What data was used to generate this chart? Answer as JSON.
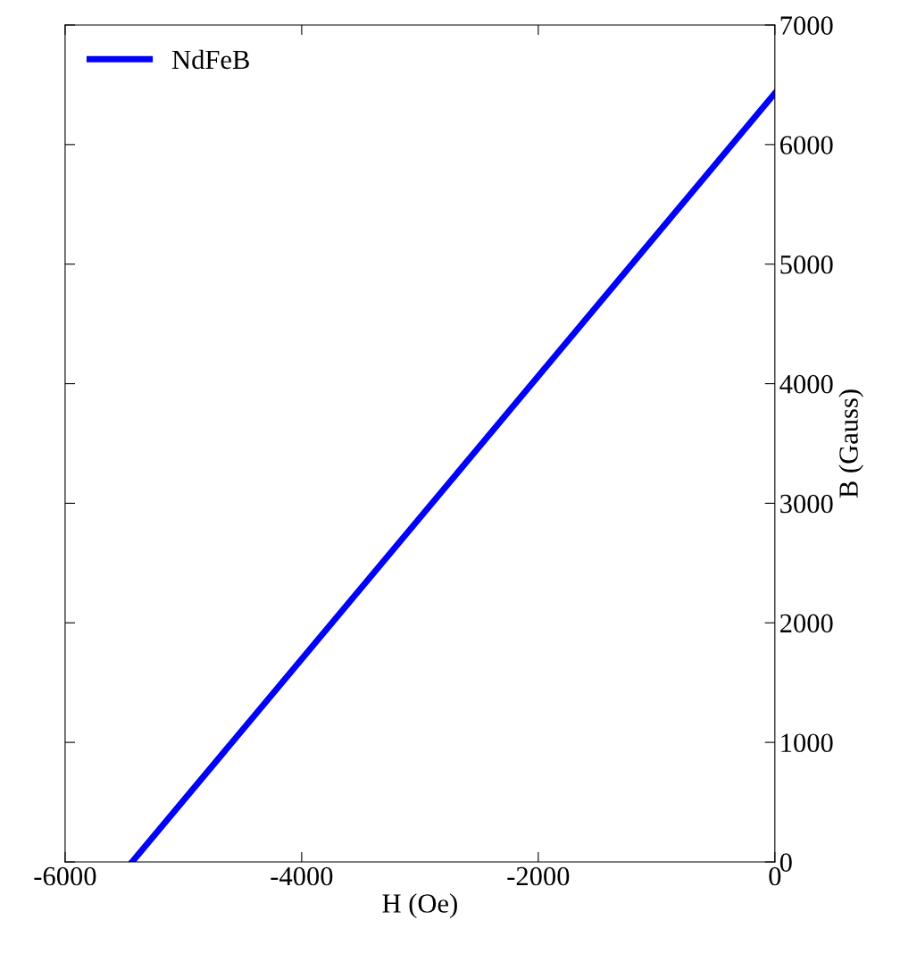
{
  "chart_data": {
    "type": "line",
    "xlabel": "H (Oe)",
    "ylabel": "B (Gauss)",
    "series": [
      {
        "name": "NdFeB",
        "color": "#0000ff",
        "x": [
          -5434,
          0
        ],
        "values": [
          0,
          6430
        ]
      }
    ],
    "xlim": [
      -6000,
      0
    ],
    "xticks": [
      -6000,
      -4000,
      -2000,
      0
    ],
    "ylim": [
      0,
      7000
    ],
    "yticks": [
      0,
      1000,
      2000,
      3000,
      4000,
      5000,
      6000,
      7000
    ],
    "grid": false,
    "legend": "top left",
    "marker": "none",
    "line_style": "solid"
  }
}
